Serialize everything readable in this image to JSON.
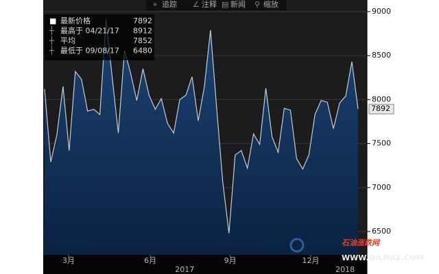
{
  "chart_data": {
    "type": "area",
    "toolbar": [
      "追踪",
      "注释",
      "新闻",
      "缩放"
    ],
    "legend_items": [
      {
        "label": "最新价格",
        "value": 7892
      },
      {
        "label": "最高于 04/21/17",
        "value": 8912
      },
      {
        "label": "平均",
        "value": 7852
      },
      {
        "label": "最低于 09/08/17",
        "value": 6480
      }
    ],
    "categories": [
      null,
      null,
      null,
      null,
      null,
      null,
      null,
      null,
      null,
      null,
      null,
      null,
      null,
      null,
      null,
      null,
      null,
      null,
      null,
      null,
      null,
      null,
      null,
      null,
      null,
      null,
      null,
      null,
      null,
      null,
      null,
      null,
      null,
      null,
      null,
      null,
      null,
      null,
      null,
      null,
      null,
      null,
      null,
      null,
      null,
      null,
      null,
      null,
      null,
      null,
      null,
      null
    ],
    "series": [
      {
        "color": "#c8cdd4",
        "values": [
          8120,
          7290,
          7600,
          8150,
          7420,
          8320,
          8230,
          7870,
          7890,
          7830,
          8912,
          8250,
          7620,
          8560,
          8300,
          7990,
          8350,
          8050,
          7890,
          8010,
          7730,
          7620,
          8000,
          8050,
          8260,
          7760,
          8150,
          8790,
          7900,
          7060,
          6480,
          7370,
          7420,
          7220,
          7610,
          7490,
          8130,
          7580,
          7400,
          7900,
          7880,
          7330,
          7210,
          7370,
          7830,
          7990,
          7970,
          7670,
          7960,
          8040,
          8430,
          7892
        ]
      }
    ],
    "ylim": [
      6235,
      9132
    ],
    "yticks": [
      6500,
      7000,
      7500,
      8000,
      8500,
      9000
    ],
    "xticks": [
      {
        "value": 3.9,
        "label": "3月"
      },
      {
        "value": 17.2,
        "label": "6月"
      },
      {
        "value": 30.2,
        "label": "9月"
      },
      {
        "value": 43.3,
        "label": "12月"
      }
    ],
    "year_ticks": [
      {
        "value": 22.8,
        "label": "2017"
      },
      {
        "value": 48.9,
        "label": "2018"
      }
    ],
    "grid": true,
    "watermark": [
      "石油涨跌网",
      "WWW.OILMAE.COM"
    ]
  }
}
